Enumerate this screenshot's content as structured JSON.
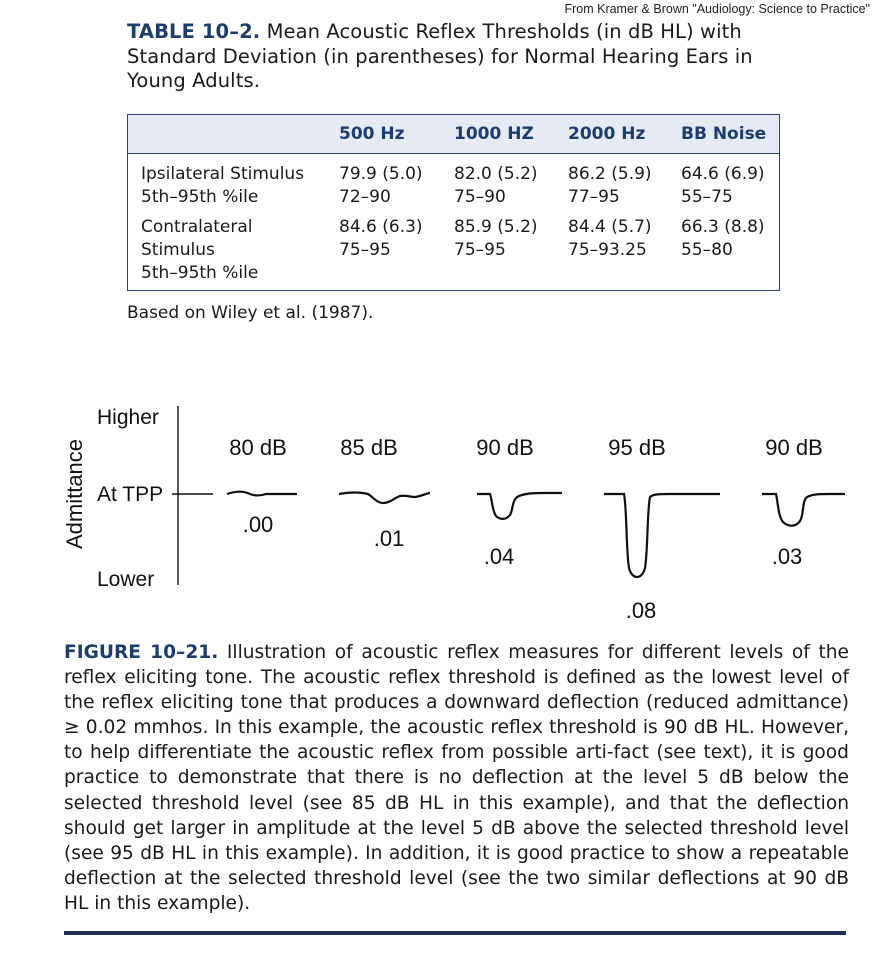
{
  "source_note": "From Kramer & Brown \"Audiology: Science to Practice\"",
  "table": {
    "label": "TABLE 10–2.",
    "title": "Mean Acoustic Reflex Thresholds (in dB HL) with Standard Deviation (in parentheses) for Normal Hearing Ears in Young Adults.",
    "headers": [
      "500 Hz",
      "1000 HZ",
      "2000 Hz",
      "BB Noise"
    ],
    "rows": [
      {
        "label_lines": [
          "Ipsilateral Stimulus",
          "5th–95th %ile"
        ],
        "cells": [
          [
            "79.9 (5.0)",
            "72–90"
          ],
          [
            "82.0 (5.2)",
            "75–90"
          ],
          [
            "86.2 (5.9)",
            "77–95"
          ],
          [
            "64.6 (6.9)",
            "55–75"
          ]
        ]
      },
      {
        "label_lines": [
          "Contralateral",
          "Stimulus",
          "5th–95th %ile"
        ],
        "cells": [
          [
            "84.6 (6.3)",
            "75–95"
          ],
          [
            "85.9 (5.2)",
            "75–95"
          ],
          [
            "84.4 (5.7)",
            "75–93.25"
          ],
          [
            "66.3 (8.8)",
            "55–80"
          ]
        ]
      }
    ],
    "note": "Based on Wiley et al. (1987)."
  },
  "figure": {
    "y_axis_title": "Admittance",
    "y_levels": [
      "Higher",
      "At TPP",
      "Lower"
    ],
    "traces": [
      {
        "level": "80 dB",
        "deflection": ".00"
      },
      {
        "level": "85 dB",
        "deflection": ".01"
      },
      {
        "level": "90 dB",
        "deflection": ".04"
      },
      {
        "level": "95 dB",
        "deflection": ".08"
      },
      {
        "level": "90 dB",
        "deflection": ".03"
      }
    ],
    "label": "FIGURE 10–21.",
    "caption": "Illustration of acoustic reflex measures for different levels of the reflex eliciting tone. The acoustic reflex threshold is defined as the lowest level of the reflex eliciting tone that produces a downward deflection (reduced admittance) ≥ 0.02 mmhos. In this example, the acoustic reflex threshold is 90 dB HL. However, to help differentiate the acoustic reflex from possible arti-fact (see text), it is good practice to demonstrate that there is no deflection at the level 5 dB below the selected threshold level (see 85 dB HL in this example), and that the deflection should get larger in amplitude at the level 5 dB above the selected threshold level (see 95 dB HL in this example). In addition, it is good practice to show a repeatable deflection at the selected threshold level (see the two similar deflections at 90 dB HL in this example)."
  }
}
